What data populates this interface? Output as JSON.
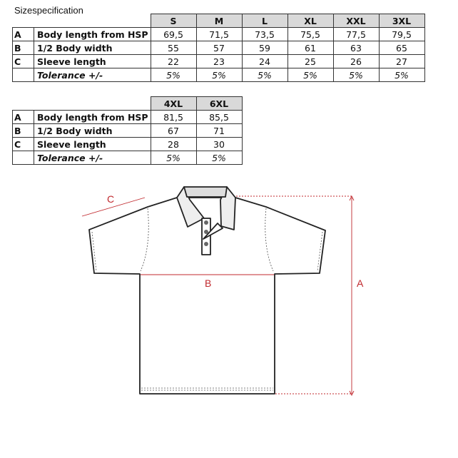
{
  "title": "Sizespecification",
  "table1": {
    "sizes": [
      "S",
      "M",
      "L",
      "XL",
      "XXL",
      "3XL"
    ],
    "rows": [
      {
        "code": "A",
        "label": "Body length from HSP",
        "values": [
          "69,5",
          "71,5",
          "73,5",
          "75,5",
          "77,5",
          "79,5"
        ]
      },
      {
        "code": "B",
        "label": "1/2 Body width",
        "values": [
          "55",
          "57",
          "59",
          "61",
          "63",
          "65"
        ]
      },
      {
        "code": "C",
        "label": "Sleeve length",
        "values": [
          "22",
          "23",
          "24",
          "25",
          "26",
          "27"
        ]
      },
      {
        "code": "",
        "label": "Tolerance +/-",
        "values": [
          "5%",
          "5%",
          "5%",
          "5%",
          "5%",
          "5%"
        ]
      }
    ]
  },
  "table2": {
    "sizes": [
      "4XL",
      "6XL"
    ],
    "rows": [
      {
        "code": "A",
        "label": "Body length from HSP",
        "values": [
          "81,5",
          "85,5"
        ]
      },
      {
        "code": "B",
        "label": "1/2 Body width",
        "values": [
          "67",
          "71"
        ]
      },
      {
        "code": "C",
        "label": "Sleeve length",
        "values": [
          "28",
          "30"
        ]
      },
      {
        "code": "",
        "label": "Tolerance +/-",
        "values": [
          "5%",
          "5%"
        ]
      }
    ]
  },
  "diagram": {
    "label_a": "A",
    "label_b": "B",
    "label_c": "C",
    "measure_color": "#c0282d"
  }
}
